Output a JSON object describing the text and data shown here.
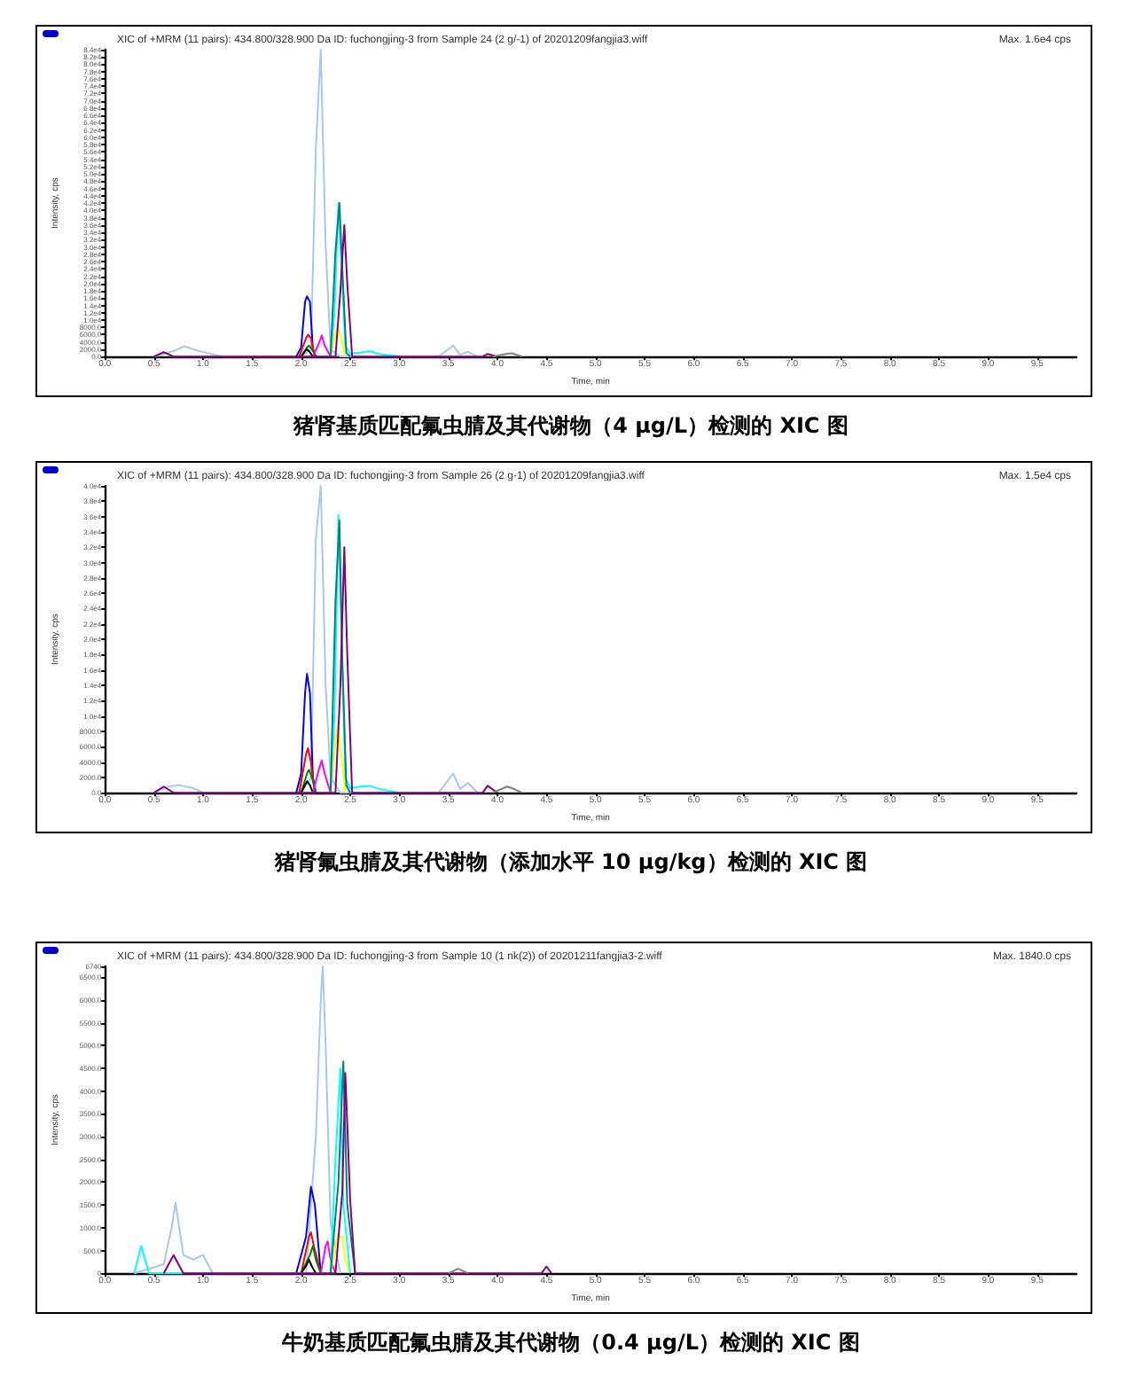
{
  "chart_data": [
    {
      "type": "line",
      "title": "XIC of +MRM (11 pairs): 434.800/328.900 Da ID: fuchongjing-3 from Sample 24 (2 g/-1) of 20201209fangjia3.wiff",
      "subtitle": "Max. 1.6e4 cps",
      "xlabel": "Time, min",
      "ylabel": "Intensity, cps",
      "annotations": [
        "猪肾基质匹配氟虫腈及其代谢物（4 μg/L）检测的 XIC 图"
      ],
      "marker": "none",
      "grid": false,
      "xlim": [
        0,
        9.9
      ],
      "xticks": [
        {
          "value": 0,
          "label": "0.0"
        },
        0.5,
        {
          "value": 1,
          "label": "1.0"
        },
        1.5,
        {
          "value": 2,
          "label": "2.0"
        },
        2.5,
        {
          "value": 3,
          "label": "3.0"
        },
        3.5,
        {
          "value": 4,
          "label": "4.0"
        },
        4.5,
        {
          "value": 5,
          "label": "5.0"
        },
        5.5,
        {
          "value": 6,
          "label": "6.0"
        },
        6.5,
        {
          "value": 7,
          "label": "7.0"
        },
        7.5,
        {
          "value": 8,
          "label": "8.0"
        },
        8.5,
        {
          "value": 9,
          "label": "9.0"
        },
        9.5
      ],
      "ylim": [
        0,
        84000
      ],
      "yticks": [
        {
          "value": 0,
          "label": "0.0"
        },
        {
          "value": 2000,
          "label": "2000.0"
        },
        {
          "value": 4000,
          "label": "4000.0"
        },
        {
          "value": 6000,
          "label": "6000.0"
        },
        {
          "value": 8000,
          "label": "8000.0"
        },
        {
          "value": 10000,
          "label": "1.0e4"
        },
        {
          "value": 12000,
          "label": "1.2e4"
        },
        {
          "value": 14000,
          "label": "1.4e4"
        },
        {
          "value": 16000,
          "label": "1.6e4"
        },
        {
          "value": 18000,
          "label": "1.8e4"
        },
        {
          "value": 20000,
          "label": "2.0e4"
        },
        {
          "value": 22000,
          "label": "2.2e4"
        },
        {
          "value": 24000,
          "label": "2.4e4"
        },
        {
          "value": 26000,
          "label": "2.6e4"
        },
        {
          "value": 28000,
          "label": "2.8e4"
        },
        {
          "value": 30000,
          "label": "3.0e4"
        },
        {
          "value": 32000,
          "label": "3.2e4"
        },
        {
          "value": 34000,
          "label": "3.4e4"
        },
        {
          "value": 36000,
          "label": "3.6e4"
        },
        {
          "value": 38000,
          "label": "3.8e4"
        },
        {
          "value": 40000,
          "label": "4.0e4"
        },
        {
          "value": 42000,
          "label": "4.2e4"
        },
        {
          "value": 44000,
          "label": "4.4e4"
        },
        {
          "value": 46000,
          "label": "4.6e4"
        },
        {
          "value": 48000,
          "label": "4.8e4"
        },
        {
          "value": 50000,
          "label": "5.0e4"
        },
        {
          "value": 52000,
          "label": "5.2e4"
        },
        {
          "value": 54000,
          "label": "5.4e4"
        },
        {
          "value": 56000,
          "label": "5.6e4"
        },
        {
          "value": 58000,
          "label": "5.8e4"
        },
        {
          "value": 60000,
          "label": "6.0e4"
        },
        {
          "value": 62000,
          "label": "6.2e4"
        },
        {
          "value": 64000,
          "label": "6.4e4"
        },
        {
          "value": 66000,
          "label": "6.6e4"
        },
        {
          "value": 68000,
          "label": "6.8e4"
        },
        {
          "value": 70000,
          "label": "7.0e4"
        },
        {
          "value": 72000,
          "label": "7.2e4"
        },
        {
          "value": 74000,
          "label": "7.4e4"
        },
        {
          "value": 76000,
          "label": "7.6e4"
        },
        {
          "value": 78000,
          "label": "7.8e4"
        },
        {
          "value": 80000,
          "label": "8.0e4"
        },
        {
          "value": 82000,
          "label": "8.2e4"
        },
        {
          "value": 84000,
          "label": "8.4e4"
        }
      ],
      "series": [
        {
          "color": "#a6c8ec",
          "x": [
            0.5,
            0.7,
            0.81,
            0.95,
            1.2,
            2.0,
            2.1,
            2.15,
            2.2,
            2.25,
            2.3,
            2.4,
            3.4,
            3.55,
            3.62,
            3.7,
            3.8
          ],
          "values": [
            0,
            1500,
            2800,
            1600,
            0,
            0,
            2000,
            57000,
            84000,
            30000,
            2000,
            0,
            0,
            3000,
            500,
            1300,
            0
          ]
        },
        {
          "color": "#0000ff",
          "x": [
            1.95,
            2.0,
            2.04,
            2.06,
            2.09,
            2.12,
            2.15
          ],
          "values": [
            0,
            2500,
            15000,
            16500,
            15000,
            2000,
            0
          ]
        },
        {
          "color": "#ff0000",
          "x": [
            1.98,
            2.05,
            2.07,
            2.1,
            2.14
          ],
          "values": [
            0,
            5000,
            6000,
            5000,
            0
          ]
        },
        {
          "color": "#008000",
          "x": [
            2.0,
            2.06,
            2.08,
            2.11,
            2.15
          ],
          "values": [
            0,
            2500,
            3000,
            2000,
            0
          ]
        },
        {
          "color": "#000000",
          "x": [
            2.0,
            2.04,
            2.06,
            2.09,
            2.12
          ],
          "values": [
            0,
            1500,
            2000,
            1200,
            0
          ]
        },
        {
          "color": "#ff00ff",
          "x": [
            2.12,
            2.18,
            2.21,
            2.24,
            2.3
          ],
          "values": [
            0,
            3500,
            5800,
            3000,
            0
          ]
        },
        {
          "color": "#ffff00",
          "x": [
            2.3,
            2.34,
            2.37,
            2.4,
            2.45
          ],
          "values": [
            0,
            5000,
            8000,
            6000,
            0
          ]
        },
        {
          "color": "#00ffff",
          "x": [
            2.3,
            2.34,
            2.38,
            2.41,
            2.45,
            2.5,
            2.6,
            2.7,
            2.8,
            3.0
          ],
          "values": [
            0,
            12000,
            42000,
            25000,
            3000,
            800,
            1100,
            1500,
            700,
            0
          ]
        },
        {
          "color": "#008080",
          "x": [
            2.3,
            2.35,
            2.39,
            2.42,
            2.46,
            2.5
          ],
          "values": [
            0,
            29000,
            42000,
            24000,
            1000,
            0
          ]
        },
        {
          "color": "#800080",
          "x": [
            0.5,
            0.6,
            0.7,
            2.35,
            2.4,
            2.44,
            2.47,
            2.52,
            3.85,
            3.9,
            4.0
          ],
          "values": [
            0,
            1200,
            0,
            0,
            18000,
            36000,
            20000,
            0,
            0,
            700,
            0
          ]
        },
        {
          "color": "#808080",
          "x": [
            3.95,
            4.1,
            4.15,
            4.25
          ],
          "values": [
            0,
            800,
            900,
            0
          ]
        }
      ]
    },
    {
      "type": "line",
      "title": "XIC of +MRM (11 pairs): 434.800/328.900 Da ID: fuchongjing-3 from Sample 26 (2 g-1) of 20201209fangjia3.wiff",
      "subtitle": "Max. 1.5e4 cps",
      "xlabel": "Time, min",
      "ylabel": "Intensity, cps",
      "annotations": [
        "猪肾氟虫腈及其代谢物（添加水平 10 μg/kg）检测的 XIC 图"
      ],
      "marker": "none",
      "grid": false,
      "xlim": [
        0,
        9.9
      ],
      "xticks": [
        {
          "value": 0,
          "label": "0.0"
        },
        0.5,
        {
          "value": 1,
          "label": "1.0"
        },
        1.5,
        {
          "value": 2,
          "label": "2.0"
        },
        2.5,
        {
          "value": 3,
          "label": "3.0"
        },
        3.5,
        {
          "value": 4,
          "label": "4.0"
        },
        4.5,
        {
          "value": 5,
          "label": "5.0"
        },
        5.5,
        {
          "value": 6,
          "label": "6.0"
        },
        6.5,
        {
          "value": 7,
          "label": "7.0"
        },
        7.5,
        {
          "value": 8,
          "label": "8.0"
        },
        8.5,
        {
          "value": 9,
          "label": "9.0"
        },
        9.5
      ],
      "ylim": [
        0,
        40000
      ],
      "yticks": [
        {
          "value": 0,
          "label": "0.0"
        },
        {
          "value": 2000,
          "label": "2000.0"
        },
        {
          "value": 4000,
          "label": "4000.0"
        },
        {
          "value": 6000,
          "label": "6000.0"
        },
        {
          "value": 8000,
          "label": "8000.0"
        },
        {
          "value": 10000,
          "label": "1.0e4"
        },
        {
          "value": 12000,
          "label": "1.2e4"
        },
        {
          "value": 14000,
          "label": "1.4e4"
        },
        {
          "value": 16000,
          "label": "1.6e4"
        },
        {
          "value": 18000,
          "label": "1.8e4"
        },
        {
          "value": 20000,
          "label": "2.0e4"
        },
        {
          "value": 22000,
          "label": "2.2e4"
        },
        {
          "value": 24000,
          "label": "2.4e4"
        },
        {
          "value": 26000,
          "label": "2.6e4"
        },
        {
          "value": 28000,
          "label": "2.8e4"
        },
        {
          "value": 30000,
          "label": "3.0e4"
        },
        {
          "value": 32000,
          "label": "3.2e4"
        },
        {
          "value": 34000,
          "label": "3.4e4"
        },
        {
          "value": 36000,
          "label": "3.6e4"
        },
        {
          "value": 38000,
          "label": "3.8e4"
        },
        {
          "value": 40000,
          "label": "4.0e4"
        }
      ],
      "series": [
        {
          "color": "#a6c8ec",
          "x": [
            0.5,
            0.65,
            0.75,
            0.9,
            1.0,
            2.0,
            2.1,
            2.15,
            2.2,
            2.25,
            2.3,
            2.4,
            3.4,
            3.55,
            3.62,
            3.7,
            3.8
          ],
          "values": [
            0,
            800,
            1000,
            600,
            0,
            0,
            2000,
            33000,
            40000,
            14000,
            2000,
            0,
            0,
            2500,
            500,
            1300,
            0
          ]
        },
        {
          "color": "#0000ff",
          "x": [
            1.95,
            2.0,
            2.04,
            2.06,
            2.09,
            2.12,
            2.15
          ],
          "values": [
            0,
            2500,
            13000,
            15500,
            13000,
            2000,
            0
          ]
        },
        {
          "color": "#ff0000",
          "x": [
            1.98,
            2.05,
            2.07,
            2.1,
            2.14
          ],
          "values": [
            0,
            5000,
            5800,
            4000,
            0
          ]
        },
        {
          "color": "#008000",
          "x": [
            2.0,
            2.06,
            2.08,
            2.11,
            2.15
          ],
          "values": [
            0,
            2500,
            3000,
            2000,
            0
          ]
        },
        {
          "color": "#000000",
          "x": [
            2.0,
            2.04,
            2.06,
            2.09,
            2.12
          ],
          "values": [
            0,
            1000,
            1500,
            1000,
            0
          ]
        },
        {
          "color": "#ff00ff",
          "x": [
            2.12,
            2.18,
            2.21,
            2.24,
            2.3
          ],
          "values": [
            0,
            3000,
            4200,
            2500,
            0
          ]
        },
        {
          "color": "#ffff00",
          "x": [
            2.3,
            2.34,
            2.37,
            2.4,
            2.45
          ],
          "values": [
            0,
            5000,
            8800,
            6000,
            0
          ]
        },
        {
          "color": "#00ffff",
          "x": [
            2.3,
            2.34,
            2.38,
            2.41,
            2.45,
            2.5,
            2.6,
            2.7,
            2.8,
            3.0
          ],
          "values": [
            0,
            10000,
            36200,
            22000,
            2000,
            600,
            800,
            900,
            500,
            0
          ]
        },
        {
          "color": "#008080",
          "x": [
            2.3,
            2.35,
            2.39,
            2.42,
            2.46,
            2.5
          ],
          "values": [
            0,
            25000,
            35500,
            17000,
            1000,
            0
          ]
        },
        {
          "color": "#800080",
          "x": [
            0.5,
            0.6,
            0.7,
            2.35,
            2.4,
            2.44,
            2.47,
            2.52,
            3.85,
            3.9,
            4.0
          ],
          "values": [
            0,
            800,
            0,
            0,
            14000,
            32000,
            18000,
            0,
            0,
            900,
            0
          ]
        },
        {
          "color": "#808080",
          "x": [
            3.95,
            4.1,
            4.15,
            4.25
          ],
          "values": [
            0,
            800,
            600,
            0
          ]
        }
      ]
    },
    {
      "type": "line",
      "title": "XIC of +MRM (11 pairs): 434.800/328.900 Da ID: fuchongjing-3 from Sample 10 (1 nk(2)) of 20201211fangjia3-2.wiff",
      "subtitle": "Max. 1840.0 cps",
      "xlabel": "Time, min",
      "ylabel": "Intensity, cps",
      "annotations": [
        "牛奶基质匹配氟虫腈及其代谢物（0.4 μg/L）检测的 XIC 图"
      ],
      "marker": "none",
      "grid": false,
      "xlim": [
        0,
        9.9
      ],
      "xticks": [
        {
          "value": 0,
          "label": "0.0"
        },
        0.5,
        {
          "value": 1,
          "label": "1.0"
        },
        1.5,
        {
          "value": 2,
          "label": "2.0"
        },
        2.5,
        {
          "value": 3,
          "label": "3.0"
        },
        3.5,
        {
          "value": 4,
          "label": "4.0"
        },
        4.5,
        {
          "value": 5,
          "label": "5.0"
        },
        5.5,
        {
          "value": 6,
          "label": "6.0"
        },
        6.5,
        {
          "value": 7,
          "label": "7.0"
        },
        7.5,
        {
          "value": 8,
          "label": "8.0"
        },
        8.5,
        {
          "value": 9,
          "label": "9.0"
        },
        9.5
      ],
      "ylim": [
        0,
        6740
      ],
      "yticks": [
        0,
        {
          "value": 500,
          "label": "500.0"
        },
        {
          "value": 1000,
          "label": "1000.0"
        },
        {
          "value": 1500,
          "label": "1500.0"
        },
        {
          "value": 2000,
          "label": "2000.0"
        },
        {
          "value": 2500,
          "label": "2500.0"
        },
        {
          "value": 3000,
          "label": "3000.0"
        },
        {
          "value": 3500,
          "label": "3500.0"
        },
        {
          "value": 4000,
          "label": "4000.0"
        },
        {
          "value": 4500,
          "label": "4500.0"
        },
        {
          "value": 5000,
          "label": "5000.0"
        },
        {
          "value": 5500,
          "label": "5500.0"
        },
        {
          "value": 6000,
          "label": "6000.0"
        },
        {
          "value": 6500,
          "label": "6500.0"
        },
        6740
      ],
      "series": [
        {
          "color": "#a6c8ec",
          "x": [
            0.3,
            0.6,
            0.68,
            0.72,
            0.8,
            0.9,
            1.0,
            1.1,
            2.05,
            2.15,
            2.2,
            2.22,
            2.25,
            2.3,
            2.4
          ],
          "values": [
            0,
            200,
            1000,
            1550,
            400,
            300,
            400,
            0,
            0,
            3000,
            6000,
            6740,
            5000,
            1100,
            0
          ]
        },
        {
          "color": "#0000ff",
          "x": [
            1.95,
            2.05,
            2.1,
            2.14,
            2.2
          ],
          "values": [
            0,
            800,
            1900,
            1500,
            0
          ]
        },
        {
          "color": "#ff0000",
          "x": [
            2.0,
            2.08,
            2.1,
            2.13,
            2.2
          ],
          "values": [
            0,
            800,
            900,
            600,
            0
          ]
        },
        {
          "color": "#008000",
          "x": [
            2.0,
            2.09,
            2.12,
            2.15,
            2.2
          ],
          "values": [
            0,
            400,
            600,
            300,
            0
          ]
        },
        {
          "color": "#000000",
          "x": [
            2.0,
            2.06,
            2.08,
            2.11,
            2.15
          ],
          "values": [
            0,
            200,
            300,
            150,
            0
          ]
        },
        {
          "color": "#ff00ff",
          "x": [
            2.2,
            2.25,
            2.27,
            2.3,
            2.35
          ],
          "values": [
            0,
            600,
            700,
            300,
            0
          ]
        },
        {
          "color": "#ffff00",
          "x": [
            2.3,
            2.37,
            2.42,
            2.45,
            2.5
          ],
          "values": [
            0,
            800,
            800,
            300,
            0
          ]
        },
        {
          "color": "#00ffff",
          "x": [
            0.3,
            0.37,
            0.45,
            2.3,
            2.35,
            2.4,
            2.43,
            2.5
          ],
          "values": [
            0,
            600,
            0,
            0,
            2500,
            4500,
            1500,
            0
          ]
        },
        {
          "color": "#008080",
          "x": [
            2.3,
            2.38,
            2.43,
            2.47,
            2.55
          ],
          "values": [
            0,
            2000,
            4650,
            1500,
            0
          ]
        },
        {
          "color": "#800080",
          "x": [
            0.6,
            0.7,
            0.8,
            2.35,
            2.42,
            2.45,
            2.5,
            2.55,
            4.45,
            4.5,
            4.55
          ],
          "values": [
            0,
            400,
            0,
            0,
            1800,
            4400,
            1600,
            0,
            0,
            150,
            0
          ]
        },
        {
          "color": "#808080",
          "x": [
            3.5,
            3.6,
            3.7
          ],
          "values": [
            0,
            100,
            0
          ]
        }
      ]
    }
  ]
}
